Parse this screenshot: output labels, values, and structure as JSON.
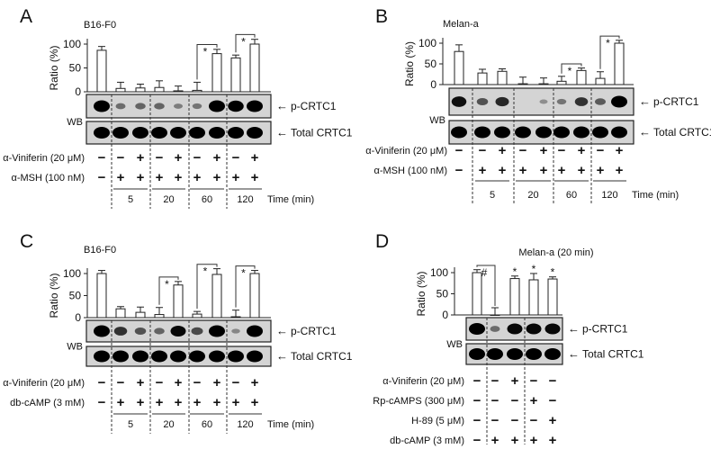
{
  "common": {
    "ylabel": "Ratio (%)",
    "yticks": [
      "0",
      "50",
      "100"
    ],
    "wb_label": "WB",
    "blot_labels": [
      "p-CRTC1",
      "Total CRTC1"
    ],
    "time_label": "Time (min)",
    "times": [
      "5",
      "20",
      "60",
      "120"
    ],
    "arrow": "←"
  },
  "chart_data": [
    {
      "type": "bar",
      "panel": "A",
      "title": "B16-F0",
      "ylabel": "Ratio (%)",
      "ylim": [
        0,
        100
      ],
      "values": [
        87,
        7,
        8,
        9,
        2,
        3,
        80,
        71,
        100
      ],
      "errors": [
        8,
        13,
        8,
        14,
        10,
        17,
        9,
        6,
        10
      ],
      "band_p_crtc1": [
        1,
        0.3,
        0.35,
        0.35,
        0.2,
        0.25,
        1,
        0.95,
        1
      ],
      "band_total_crtc1": [
        1,
        1,
        1,
        1,
        1,
        1,
        1,
        1,
        1
      ],
      "rows": [
        {
          "label": "α-Viniferin (20 μM)",
          "signs": [
            "−",
            "−",
            "+",
            "−",
            "+",
            "−",
            "+",
            "−",
            "+"
          ]
        },
        {
          "label": "α-MSH (100 nM)",
          "signs": [
            "−",
            "+",
            "+",
            "+",
            "+",
            "+",
            "+",
            "+",
            "+"
          ]
        }
      ],
      "significance": [
        {
          "lanes": [
            5,
            6
          ],
          "mark": "*"
        },
        {
          "lanes": [
            7,
            8
          ],
          "mark": "*"
        }
      ]
    },
    {
      "type": "bar",
      "panel": "B",
      "title": "Melan-a",
      "ylabel": "Ratio (%)",
      "ylim": [
        0,
        100
      ],
      "values": [
        80,
        28,
        32,
        2,
        2,
        8,
        34,
        15,
        100
      ],
      "errors": [
        16,
        9,
        6,
        16,
        14,
        12,
        6,
        16,
        7
      ],
      "band_p_crtc1": [
        0.85,
        0.45,
        0.7,
        0,
        0.1,
        0.25,
        0.65,
        0.4,
        1
      ],
      "band_total_crtc1": [
        1,
        1,
        1,
        1,
        1,
        1,
        1,
        1,
        1
      ],
      "rows": [
        {
          "label": "α-Viniferin (20 μM)",
          "signs": [
            "−",
            "−",
            "+",
            "−",
            "+",
            "−",
            "+",
            "−",
            "+"
          ]
        },
        {
          "label": "α-MSH (100 nM)",
          "signs": [
            "−",
            "+",
            "+",
            "+",
            "+",
            "+",
            "+",
            "+",
            "+"
          ]
        }
      ],
      "significance": [
        {
          "lanes": [
            5,
            6
          ],
          "mark": "*"
        },
        {
          "lanes": [
            7,
            8
          ],
          "mark": "*"
        }
      ]
    },
    {
      "type": "bar",
      "panel": "C",
      "title": "B16-F0",
      "ylabel": "Ratio (%)",
      "ylim": [
        0,
        100
      ],
      "values": [
        100,
        20,
        12,
        7,
        74,
        8,
        98,
        2,
        100
      ],
      "errors": [
        7,
        5,
        12,
        16,
        8,
        6,
        13,
        15,
        7
      ],
      "band_p_crtc1": [
        1,
        0.65,
        0.45,
        0.35,
        0.9,
        0.5,
        1,
        0.15,
        1
      ],
      "band_total_crtc1": [
        1,
        1,
        1,
        1,
        1,
        1,
        1,
        1,
        1
      ],
      "rows": [
        {
          "label": "α-Viniferin (20 μM)",
          "signs": [
            "−",
            "−",
            "+",
            "−",
            "+",
            "−",
            "+",
            "−",
            "+"
          ]
        },
        {
          "label": "db-cAMP (3 mM)",
          "signs": [
            "−",
            "+",
            "+",
            "+",
            "+",
            "+",
            "+",
            "+",
            "+"
          ]
        }
      ],
      "significance": [
        {
          "lanes": [
            3,
            4
          ],
          "mark": "*"
        },
        {
          "lanes": [
            5,
            6
          ],
          "mark": "*"
        },
        {
          "lanes": [
            7,
            8
          ],
          "mark": "*"
        }
      ]
    },
    {
      "type": "bar",
      "panel": "D",
      "title": "Melan-a (20 min)",
      "ylabel": "Ratio (%)",
      "ylim": [
        0,
        100
      ],
      "values": [
        100,
        0,
        86,
        83,
        85
      ],
      "errors": [
        7,
        17,
        6,
        15,
        5
      ],
      "band_p_crtc1": [
        1,
        0.3,
        0.9,
        0.9,
        0.9
      ],
      "band_total_crtc1": [
        1,
        1,
        1,
        1,
        1
      ],
      "rows": [
        {
          "label": "α-Viniferin (20 μM)",
          "signs": [
            "−",
            "−",
            "+",
            "−",
            "−"
          ]
        },
        {
          "label": "Rp-cAMPS (300 μM)",
          "signs": [
            "−",
            "−",
            "−",
            "+",
            "−"
          ]
        },
        {
          "label": "H-89 (5 μM)",
          "signs": [
            "−",
            "−",
            "−",
            "−",
            "+"
          ]
        },
        {
          "label": "db-cAMP (3 mM)",
          "signs": [
            "−",
            "+",
            "+",
            "+",
            "+"
          ]
        }
      ],
      "significance": [
        {
          "lanes": [
            0,
            1
          ],
          "mark": "#"
        }
      ],
      "single_marks": [
        {
          "lane": 2,
          "mark": "*"
        },
        {
          "lane": 3,
          "mark": "*"
        },
        {
          "lane": 4,
          "mark": "*"
        }
      ]
    }
  ]
}
